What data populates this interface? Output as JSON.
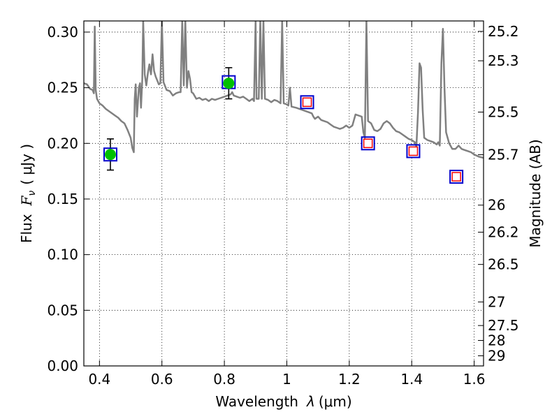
{
  "chart_data": {
    "type": "scatter",
    "xlabel_prefix": "Wavelength",
    "xlabel_var": "λ",
    "xlabel_unit": "(μm)",
    "ylabel_prefix": "Flux",
    "ylabel_var": "F",
    "ylabel_sub": "ν",
    "ylabel_unit": "( μJy )",
    "y2label": "Magnitude (AB)",
    "xlim": [
      0.35,
      1.63
    ],
    "ylim": [
      0.0,
      0.31
    ],
    "grid": true,
    "x_ticks": [
      0.4,
      0.6,
      0.8,
      1.0,
      1.2,
      1.4,
      1.6
    ],
    "x_tick_labels": [
      "0.4",
      "0.6",
      "0.8",
      "1",
      "1.2",
      "1.4",
      "1.6"
    ],
    "y_ticks": [
      0.0,
      0.05,
      0.1,
      0.15,
      0.2,
      0.25,
      0.3
    ],
    "y_tick_labels": [
      "0.00",
      "0.05",
      "0.10",
      "0.15",
      "0.20",
      "0.25",
      "0.30"
    ],
    "y2_ticks": [
      {
        "flux": 0.3006,
        "label": "25.2"
      },
      {
        "flux": 0.2742,
        "label": "25.3"
      },
      {
        "flux": 0.2281,
        "label": "25.5"
      },
      {
        "flux": 0.1898,
        "label": "25.7"
      },
      {
        "flux": 0.1445,
        "label": "26"
      },
      {
        "flux": 0.1202,
        "label": "26.2"
      },
      {
        "flux": 0.0912,
        "label": "26.5"
      },
      {
        "flux": 0.0575,
        "label": "27"
      },
      {
        "flux": 0.0363,
        "label": "27.5"
      },
      {
        "flux": 0.0229,
        "label": "28"
      },
      {
        "flux": 0.0091,
        "label": "29"
      }
    ],
    "series": [
      {
        "kind": "model-spectrum",
        "color": "#808080",
        "points": [
          [
            0.35,
            0.254
          ],
          [
            0.36,
            0.253
          ],
          [
            0.37,
            0.249
          ],
          [
            0.378,
            0.248
          ],
          [
            0.382,
            0.245
          ],
          [
            0.385,
            0.305
          ],
          [
            0.388,
            0.248
          ],
          [
            0.392,
            0.24
          ],
          [
            0.4,
            0.236
          ],
          [
            0.41,
            0.234
          ],
          [
            0.42,
            0.231
          ],
          [
            0.43,
            0.229
          ],
          [
            0.44,
            0.227
          ],
          [
            0.45,
            0.225
          ],
          [
            0.46,
            0.223
          ],
          [
            0.47,
            0.22
          ],
          [
            0.48,
            0.218
          ],
          [
            0.49,
            0.212
          ],
          [
            0.5,
            0.205
          ],
          [
            0.505,
            0.196
          ],
          [
            0.51,
            0.192
          ],
          [
            0.513,
            0.24
          ],
          [
            0.516,
            0.253
          ],
          [
            0.52,
            0.224
          ],
          [
            0.523,
            0.236
          ],
          [
            0.526,
            0.25
          ],
          [
            0.53,
            0.254
          ],
          [
            0.533,
            0.232
          ],
          [
            0.537,
            0.257
          ],
          [
            0.54,
            0.31
          ],
          [
            0.545,
            0.262
          ],
          [
            0.55,
            0.252
          ],
          [
            0.555,
            0.263
          ],
          [
            0.56,
            0.271
          ],
          [
            0.565,
            0.262
          ],
          [
            0.57,
            0.28
          ],
          [
            0.575,
            0.265
          ],
          [
            0.58,
            0.26
          ],
          [
            0.59,
            0.253
          ],
          [
            0.595,
            0.254
          ],
          [
            0.6,
            0.31
          ],
          [
            0.605,
            0.255
          ],
          [
            0.615,
            0.248
          ],
          [
            0.625,
            0.247
          ],
          [
            0.635,
            0.243
          ],
          [
            0.645,
            0.245
          ],
          [
            0.655,
            0.246
          ],
          [
            0.66,
            0.246
          ],
          [
            0.665,
            0.31
          ],
          [
            0.67,
            0.252
          ],
          [
            0.675,
            0.31
          ],
          [
            0.68,
            0.25
          ],
          [
            0.685,
            0.265
          ],
          [
            0.69,
            0.258
          ],
          [
            0.695,
            0.246
          ],
          [
            0.7,
            0.245
          ],
          [
            0.71,
            0.24
          ],
          [
            0.72,
            0.241
          ],
          [
            0.73,
            0.239
          ],
          [
            0.74,
            0.24
          ],
          [
            0.75,
            0.238
          ],
          [
            0.76,
            0.24
          ],
          [
            0.77,
            0.239
          ],
          [
            0.78,
            0.24
          ],
          [
            0.79,
            0.241
          ],
          [
            0.8,
            0.242
          ],
          [
            0.81,
            0.243
          ],
          [
            0.82,
            0.244
          ],
          [
            0.825,
            0.246
          ],
          [
            0.83,
            0.243
          ],
          [
            0.84,
            0.242
          ],
          [
            0.85,
            0.241
          ],
          [
            0.86,
            0.242
          ],
          [
            0.87,
            0.24
          ],
          [
            0.88,
            0.238
          ],
          [
            0.89,
            0.24
          ],
          [
            0.895,
            0.238
          ],
          [
            0.9,
            0.31
          ],
          [
            0.903,
            0.24
          ],
          [
            0.91,
            0.24
          ],
          [
            0.915,
            0.31
          ],
          [
            0.92,
            0.24
          ],
          [
            0.925,
            0.31
          ],
          [
            0.93,
            0.24
          ],
          [
            0.94,
            0.239
          ],
          [
            0.95,
            0.237
          ],
          [
            0.96,
            0.239
          ],
          [
            0.97,
            0.238
          ],
          [
            0.98,
            0.236
          ],
          [
            0.985,
            0.31
          ],
          [
            0.99,
            0.236
          ],
          [
            1.0,
            0.235
          ],
          [
            1.005,
            0.234
          ],
          [
            1.01,
            0.25
          ],
          [
            1.015,
            0.233
          ],
          [
            1.03,
            0.232
          ],
          [
            1.05,
            0.23
          ],
          [
            1.07,
            0.228
          ],
          [
            1.08,
            0.227
          ],
          [
            1.085,
            0.224
          ],
          [
            1.09,
            0.222
          ],
          [
            1.1,
            0.224
          ],
          [
            1.11,
            0.221
          ],
          [
            1.12,
            0.22
          ],
          [
            1.13,
            0.219
          ],
          [
            1.14,
            0.217
          ],
          [
            1.15,
            0.215
          ],
          [
            1.16,
            0.214
          ],
          [
            1.17,
            0.213
          ],
          [
            1.18,
            0.214
          ],
          [
            1.19,
            0.216
          ],
          [
            1.2,
            0.214
          ],
          [
            1.21,
            0.216
          ],
          [
            1.22,
            0.226
          ],
          [
            1.23,
            0.225
          ],
          [
            1.24,
            0.224
          ],
          [
            1.245,
            0.21
          ],
          [
            1.25,
            0.205
          ],
          [
            1.255,
            0.31
          ],
          [
            1.26,
            0.22
          ],
          [
            1.27,
            0.218
          ],
          [
            1.28,
            0.212
          ],
          [
            1.29,
            0.211
          ],
          [
            1.3,
            0.213
          ],
          [
            1.31,
            0.218
          ],
          [
            1.32,
            0.22
          ],
          [
            1.33,
            0.218
          ],
          [
            1.34,
            0.214
          ],
          [
            1.35,
            0.211
          ],
          [
            1.36,
            0.21
          ],
          [
            1.37,
            0.208
          ],
          [
            1.38,
            0.206
          ],
          [
            1.39,
            0.204
          ],
          [
            1.4,
            0.203
          ],
          [
            1.41,
            0.201
          ],
          [
            1.415,
            0.197
          ],
          [
            1.42,
            0.228
          ],
          [
            1.425,
            0.272
          ],
          [
            1.43,
            0.268
          ],
          [
            1.435,
            0.23
          ],
          [
            1.44,
            0.205
          ],
          [
            1.45,
            0.203
          ],
          [
            1.46,
            0.202
          ],
          [
            1.47,
            0.201
          ],
          [
            1.48,
            0.199
          ],
          [
            1.485,
            0.201
          ],
          [
            1.49,
            0.198
          ],
          [
            1.495,
            0.272
          ],
          [
            1.5,
            0.303
          ],
          [
            1.505,
            0.25
          ],
          [
            1.51,
            0.21
          ],
          [
            1.52,
            0.2
          ],
          [
            1.53,
            0.195
          ],
          [
            1.54,
            0.195
          ],
          [
            1.55,
            0.198
          ],
          [
            1.56,
            0.195
          ],
          [
            1.57,
            0.194
          ],
          [
            1.58,
            0.193
          ],
          [
            1.59,
            0.192
          ],
          [
            1.6,
            0.19
          ],
          [
            1.615,
            0.188
          ],
          [
            1.63,
            0.187
          ]
        ]
      },
      {
        "kind": "observed-flux",
        "marker": "circle",
        "color": "#00c000",
        "points": [
          {
            "x": 0.435,
            "y": 0.19,
            "yerr": 0.014
          },
          {
            "x": 0.814,
            "y": 0.254,
            "yerr": 0.014
          }
        ]
      },
      {
        "kind": "model-band-flux",
        "marker": "square",
        "color": "#0000cc",
        "points": [
          {
            "x": 0.435,
            "y": 0.19
          },
          {
            "x": 0.814,
            "y": 0.255
          },
          {
            "x": 1.065,
            "y": 0.237
          },
          {
            "x": 1.26,
            "y": 0.2
          },
          {
            "x": 1.405,
            "y": 0.193
          },
          {
            "x": 1.543,
            "y": 0.17
          }
        ]
      },
      {
        "kind": "upper-limit-flux",
        "marker": "square",
        "color": "#ff0000",
        "points": [
          {
            "x": 1.065,
            "y": 0.237
          },
          {
            "x": 1.26,
            "y": 0.2
          },
          {
            "x": 1.405,
            "y": 0.193
          },
          {
            "x": 1.543,
            "y": 0.17
          }
        ]
      }
    ]
  }
}
